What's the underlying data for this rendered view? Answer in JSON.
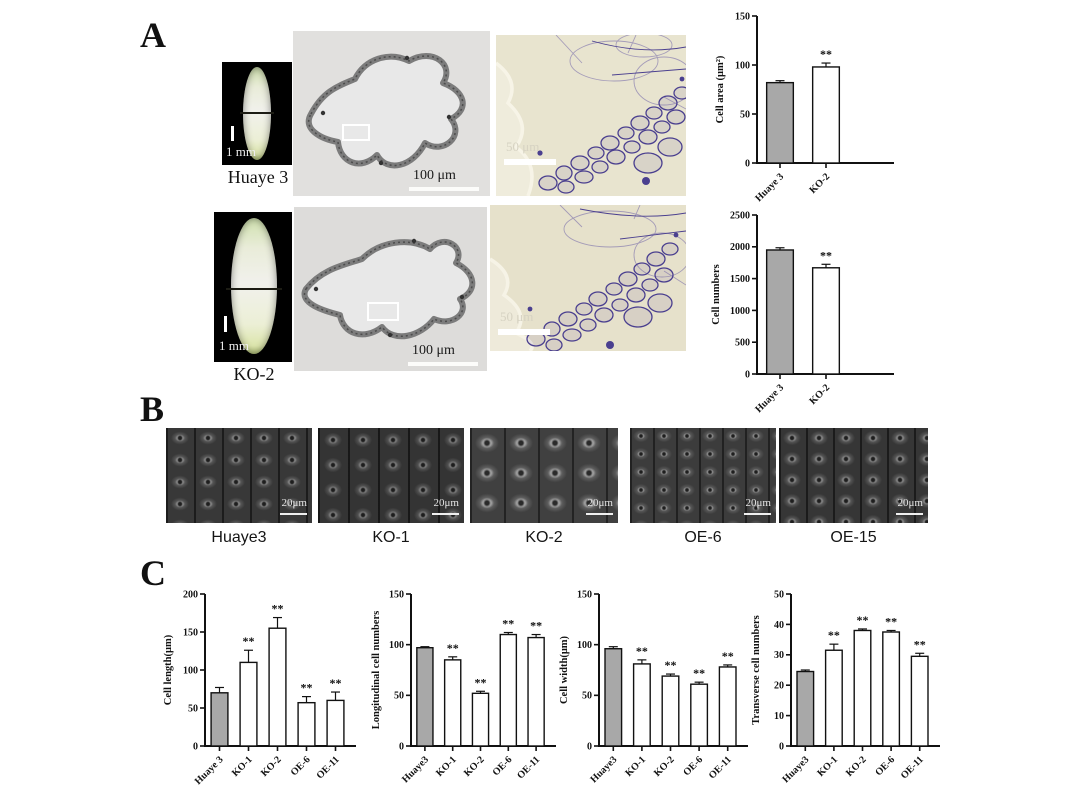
{
  "colors": {
    "bar_gray": "#a8a8a8",
    "bar_white": "#ffffff",
    "axis": "#111111",
    "section_bg": "#e1e0de",
    "micro_bg": "#e8e4cf",
    "sem_bg": "#383838",
    "stain_purple": "#4a3f8f"
  },
  "panels": {
    "A": {
      "label": "A",
      "rows": [
        {
          "seed_label": "Huaye 3",
          "seed_scale_label": "1 mm",
          "section_scale_label": "100 μm",
          "micro_scale_label": "50 μm"
        },
        {
          "seed_label": "KO-2",
          "seed_scale_label": "1 mm",
          "section_scale_label": "100 μm",
          "micro_scale_label": "50 μm"
        }
      ]
    },
    "B": {
      "label": "B",
      "images": [
        {
          "label": "Huaye3",
          "scale_label": "20μm"
        },
        {
          "label": "KO-1",
          "scale_label": "20μm"
        },
        {
          "label": "KO-2",
          "scale_label": "20μm"
        },
        {
          "label": "OE-6",
          "scale_label": "20μm"
        },
        {
          "label": "OE-15",
          "scale_label": "20μm"
        }
      ]
    },
    "C": {
      "label": "C"
    }
  },
  "chart_data": [
    {
      "id": "cell-area",
      "type": "bar",
      "ylabel": "Cell area (μm²)",
      "categories": [
        "Huaye 3",
        "KO-2"
      ],
      "values": [
        82,
        98
      ],
      "errors": [
        2,
        4
      ],
      "sig": [
        "",
        "**"
      ],
      "fills": [
        "gray",
        "white"
      ],
      "ylim": [
        0,
        150
      ],
      "yticks": [
        0,
        50,
        100,
        150
      ]
    },
    {
      "id": "cell-numbers",
      "type": "bar",
      "ylabel": "Cell numbers",
      "categories": [
        "Huaye 3",
        "KO-2"
      ],
      "values": [
        1950,
        1670
      ],
      "errors": [
        35,
        55
      ],
      "sig": [
        "",
        "**"
      ],
      "fills": [
        "gray",
        "white"
      ],
      "ylim": [
        0,
        2500
      ],
      "yticks": [
        0,
        500,
        1000,
        1500,
        2000,
        2500
      ]
    },
    {
      "id": "cell-length",
      "type": "bar",
      "ylabel": "Cell length(μm)",
      "categories": [
        "Huaye 3",
        "KO-1",
        "KO-2",
        "OE-6",
        "OE-11"
      ],
      "values": [
        70,
        110,
        155,
        57,
        60
      ],
      "errors": [
        7,
        16,
        14,
        8,
        11
      ],
      "sig": [
        "",
        "**",
        "**",
        "**",
        "**"
      ],
      "fills": [
        "gray",
        "white",
        "white",
        "white",
        "white"
      ],
      "ylim": [
        0,
        200
      ],
      "yticks": [
        0,
        50,
        100,
        150,
        200
      ]
    },
    {
      "id": "longitudinal-cell-numbers",
      "type": "bar",
      "ylabel": "Longitudinal cell numbers",
      "categories": [
        "Huaye3",
        "KO-1",
        "KO-2",
        "OE-6",
        "OE-11"
      ],
      "values": [
        97,
        85,
        52,
        110,
        107
      ],
      "errors": [
        1,
        3,
        2,
        2,
        3
      ],
      "sig": [
        "",
        "**",
        "**",
        "**",
        "**"
      ],
      "fills": [
        "gray",
        "white",
        "white",
        "white",
        "white"
      ],
      "ylim": [
        0,
        150
      ],
      "yticks": [
        0,
        50,
        100,
        150
      ]
    },
    {
      "id": "cell-width",
      "type": "bar",
      "ylabel": "Cell width(μm)",
      "categories": [
        "Huaye3",
        "KO-1",
        "KO-2",
        "OE-6",
        "OE-11"
      ],
      "values": [
        96,
        81,
        69,
        61,
        78
      ],
      "errors": [
        2,
        4,
        2,
        2,
        2
      ],
      "sig": [
        "",
        "**",
        "**",
        "**",
        "**"
      ],
      "fills": [
        "gray",
        "white",
        "white",
        "white",
        "white"
      ],
      "ylim": [
        0,
        150
      ],
      "yticks": [
        0,
        50,
        100,
        150
      ]
    },
    {
      "id": "transverse-cell-numbers",
      "type": "bar",
      "ylabel": "Transverse cell numbers",
      "categories": [
        "Huaye3",
        "KO-1",
        "KO-2",
        "OE-6",
        "OE-11"
      ],
      "values": [
        24.5,
        31.5,
        38,
        37.5,
        29.5
      ],
      "errors": [
        0.5,
        2,
        0.5,
        0.5,
        1
      ],
      "sig": [
        "",
        "**",
        "**",
        "**",
        "**"
      ],
      "fills": [
        "gray",
        "white",
        "white",
        "white",
        "white"
      ],
      "ylim": [
        0,
        50
      ],
      "yticks": [
        0,
        10,
        20,
        30,
        40,
        50
      ]
    }
  ]
}
